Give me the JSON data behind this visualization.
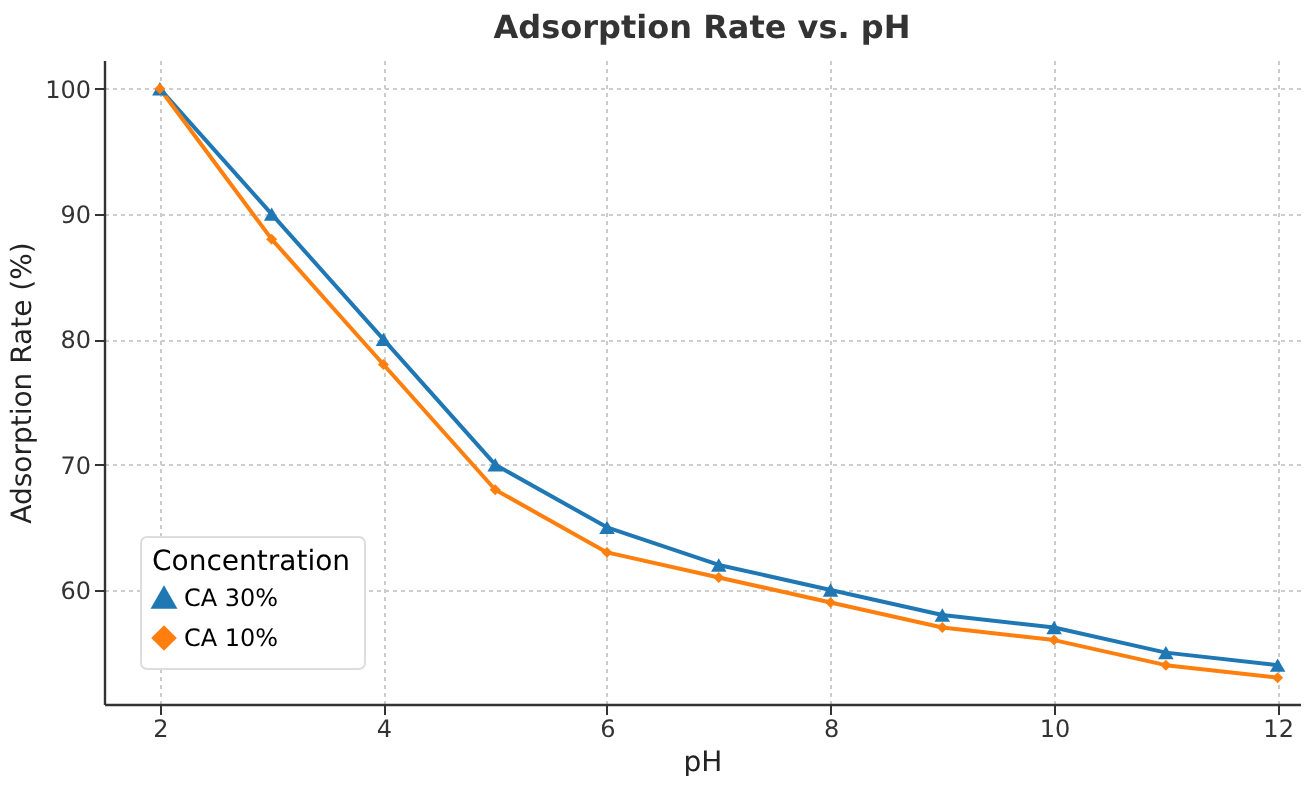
{
  "chart_data": {
    "type": "line",
    "title": "Adsorption Rate vs. pH",
    "xlabel": "pH",
    "ylabel": "Adsorption Rate (%)",
    "legend_title": "Concentration",
    "x": [
      2,
      3,
      4,
      5,
      6,
      7,
      8,
      9,
      10,
      11,
      12
    ],
    "series": [
      {
        "name": "CA 30%",
        "color": "#1f77b4",
        "marker": "triangle",
        "values": [
          100,
          90,
          80,
          70,
          65,
          62,
          60,
          58,
          57,
          55,
          54
        ]
      },
      {
        "name": "CA 10%",
        "color": "#ff7f0e",
        "marker": "diamond",
        "values": [
          100,
          88,
          78,
          68,
          63,
          61,
          59,
          57,
          56,
          54,
          53
        ]
      }
    ],
    "xlim": [
      1.5,
      12.2
    ],
    "ylim": [
      50.9,
      102.3
    ],
    "xticks": [
      2,
      4,
      6,
      8,
      10,
      12
    ],
    "yticks": [
      60,
      70,
      80,
      90,
      100
    ],
    "grid": true,
    "legend": "bottom left",
    "line_style": "solid"
  }
}
